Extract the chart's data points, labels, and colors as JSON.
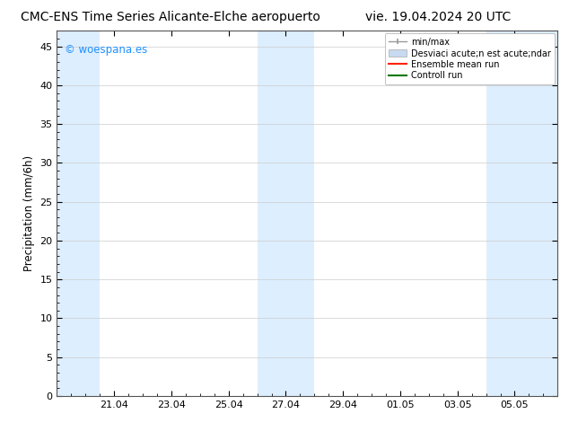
{
  "title_left": "CMC-ENS Time Series Alicante-Elche aeropuerto",
  "title_right": "vie. 19.04.2024 20 UTC",
  "ylabel": "Precipitation (mm/6h)",
  "watermark": "© woespana.es",
  "watermark_color": "#1E90FF",
  "ylim": [
    0,
    47
  ],
  "yticks": [
    0,
    5,
    10,
    15,
    20,
    25,
    30,
    35,
    40,
    45
  ],
  "background_color": "#ffffff",
  "plot_bg_color": "#ffffff",
  "legend_items": [
    {
      "label": "min/max",
      "color": "#aaaaaa",
      "type": "errorbar"
    },
    {
      "label": "Desviaci acute;n est acute;ndar",
      "color": "#c8daf0",
      "type": "bar"
    },
    {
      "label": "Ensemble mean run",
      "color": "#ff0000",
      "type": "line"
    },
    {
      "label": "Controll run",
      "color": "#008000",
      "type": "line"
    }
  ],
  "shaded_bands": [
    {
      "xstart": 0.0,
      "xend": 1.5,
      "color": "#ddeeff"
    },
    {
      "xstart": 7.0,
      "xend": 9.0,
      "color": "#ddeeff"
    },
    {
      "xstart": 15.0,
      "xend": 17.5,
      "color": "#ddeeff"
    }
  ],
  "xtick_labels": [
    "21.04",
    "23.04",
    "25.04",
    "27.04",
    "29.04",
    "01.05",
    "03.05",
    "05.05"
  ],
  "xtick_positions": [
    2.0,
    4.0,
    6.0,
    8.0,
    10.0,
    12.0,
    14.0,
    16.0
  ],
  "xlim": [
    0.0,
    17.5
  ],
  "grid_color": "#cccccc",
  "title_fontsize": 10,
  "axis_label_fontsize": 8.5,
  "tick_fontsize": 8,
  "legend_fontsize": 7,
  "watermark_fontsize": 8.5
}
